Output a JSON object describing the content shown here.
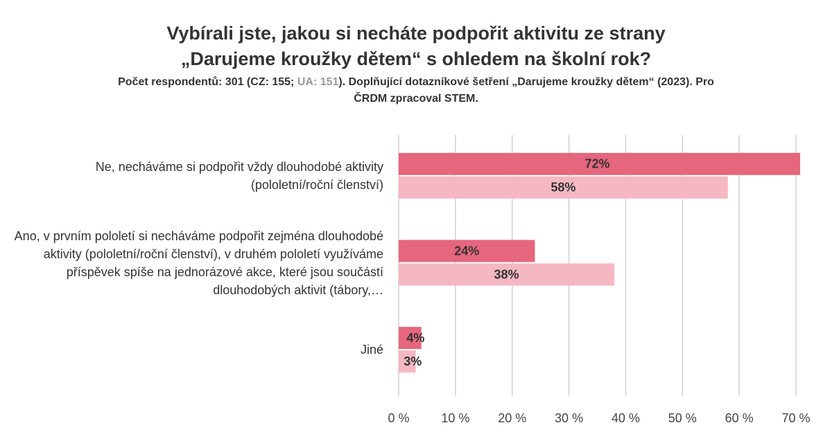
{
  "chart_data": {
    "type": "hbar",
    "title": "Vybírali jste, jakou si necháte podpořit aktivitu ze strany „Darujeme kroužky dětem“ s ohledem na školní rok?",
    "subtitle": [
      "Počet respondentů: 301 (CZ: 155; ",
      "UA: 151",
      "). Doplňující dotazníkové šetření „Darujeme kroužky dětem“ (2023). Pro ČRDM zpracoval STEM."
    ],
    "categories": [
      "Ne, necháváme si podpořit vždy dlouhodobé aktivity (pololetní/roční členství)",
      "Ano, v prvním pololetí si necháváme podpořit zejména dlouhodobé aktivity (pololetní/roční členství), v druhém pololetí využíváme příspěvek spíše na jednorázové akce, které jsou součástí dlouhodobých aktivit (tábory,…",
      "Jiné"
    ],
    "series": [
      {
        "color": "#e5667d",
        "values": [
          72,
          24,
          4
        ],
        "value_labels": [
          "72%",
          "24%",
          "4%"
        ]
      },
      {
        "color": "#f5b8c2",
        "values": [
          58,
          38,
          3
        ],
        "value_labels": [
          "58%",
          "38%",
          "3%"
        ]
      }
    ],
    "xlim": [
      0,
      70
    ],
    "xticks": [
      {
        "value": 0,
        "label": "0 %"
      },
      {
        "value": 10,
        "label": "10 %"
      },
      {
        "value": 20,
        "label": "20 %"
      },
      {
        "value": 30,
        "label": "30 %"
      },
      {
        "value": 40,
        "label": "40 %"
      },
      {
        "value": 50,
        "label": "50 %"
      },
      {
        "value": 60,
        "label": "60 %"
      },
      {
        "value": 70,
        "label": "70 %"
      }
    ],
    "grid": true
  }
}
